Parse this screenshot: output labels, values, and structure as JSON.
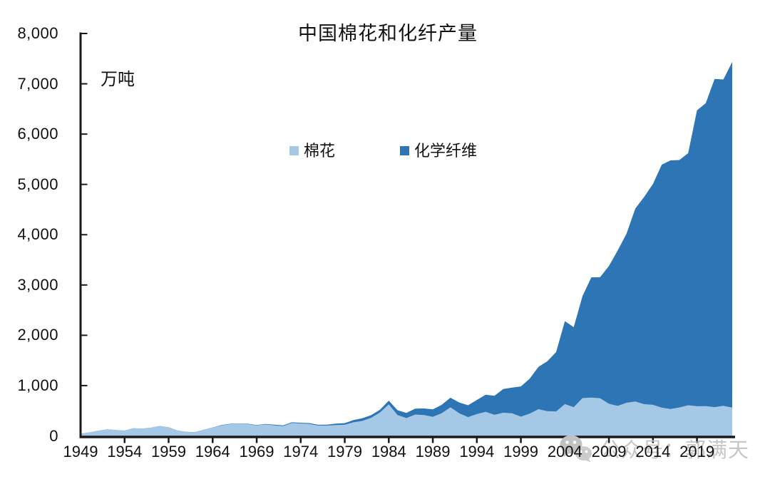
{
  "watermark": {
    "text": "公众号：郭满天",
    "color": "#c6c6c6"
  },
  "chart_data": {
    "type": "area",
    "stacked": true,
    "title": "中国棉花和化纤产量",
    "unit_label": "万吨",
    "ylabel": "万吨",
    "xlabel": "",
    "ylim": [
      0,
      8000
    ],
    "y_tick_interval": 1000,
    "grid": false,
    "legend_position": "top-center",
    "axis_color": "#1a1a1a",
    "y_tick_labels": [
      "0",
      "1,000",
      "2,000",
      "3,000",
      "4,000",
      "5,000",
      "6,000",
      "7,000",
      "8,000"
    ],
    "x_tick_labels": [
      "1949",
      "1954",
      "1959",
      "1964",
      "1969",
      "1974",
      "1979",
      "1984",
      "1989",
      "1994",
      "1999",
      "2004",
      "2009",
      "2014",
      "2019"
    ],
    "x": [
      1949,
      1950,
      1951,
      1952,
      1953,
      1954,
      1955,
      1956,
      1957,
      1958,
      1959,
      1960,
      1961,
      1962,
      1963,
      1964,
      1965,
      1966,
      1967,
      1968,
      1969,
      1970,
      1971,
      1972,
      1973,
      1974,
      1975,
      1976,
      1977,
      1978,
      1979,
      1980,
      1981,
      1982,
      1983,
      1984,
      1985,
      1986,
      1987,
      1988,
      1989,
      1990,
      1991,
      1992,
      1993,
      1994,
      1995,
      1996,
      1997,
      1998,
      1999,
      2000,
      2001,
      2002,
      2003,
      2004,
      2005,
      2006,
      2007,
      2008,
      2009,
      2010,
      2011,
      2012,
      2013,
      2014,
      2015,
      2016,
      2017,
      2018,
      2019,
      2020,
      2021,
      2022,
      2023
    ],
    "series": [
      {
        "name": "棉花",
        "color": "#A6C8E7",
        "values": [
          44,
          69,
          103,
          130,
          117,
          106,
          152,
          145,
          164,
          197,
          171,
          106,
          80,
          75,
          120,
          166,
          210,
          234,
          235,
          235,
          208,
          228,
          210,
          196,
          256,
          246,
          238,
          206,
          205,
          217,
          221,
          271,
          297,
          360,
          464,
          626,
          415,
          354,
          425,
          415,
          379,
          451,
          568,
          451,
          374,
          434,
          477,
          420,
          460,
          450,
          383,
          442,
          532,
          492,
          486,
          632,
          571,
          753,
          762,
          749,
          638,
          596,
          659,
          684,
          630,
          618,
          561,
          534,
          565,
          610,
          589,
          591,
          573,
          598,
          562
        ]
      },
      {
        "name": "化学纤维",
        "color": "#2E75B6",
        "values": [
          0,
          0,
          0,
          0,
          0,
          0,
          0,
          0,
          0,
          0,
          1,
          1,
          1,
          2,
          2,
          3,
          5,
          7,
          8,
          8,
          9,
          10,
          12,
          14,
          15,
          15,
          16,
          15,
          19,
          28,
          33,
          45,
          53,
          52,
          54,
          74,
          95,
          102,
          118,
          130,
          148,
          165,
          191,
          213,
          236,
          280,
          341,
          376,
          472,
          510,
          600,
          694,
          841,
          991,
          1181,
          1650,
          1590,
          2026,
          2390,
          2405,
          2741,
          3090,
          3362,
          3837,
          4122,
          4390,
          4832,
          4944,
          4920,
          5011,
          5883,
          6025,
          6524,
          6488,
          6872
        ]
      }
    ]
  }
}
